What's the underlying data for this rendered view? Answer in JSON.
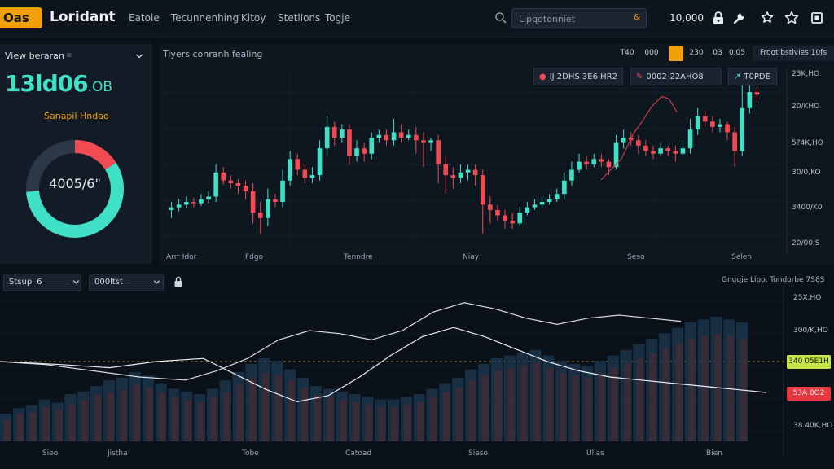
{
  "header": {
    "logo": "Oas",
    "brand": "Loridant",
    "nav": [
      "Eatole",
      "Tecunnenhing",
      "Kitoy",
      "Stetlions",
      "Togje"
    ],
    "search_placeholder": "Lipqotonniet",
    "search_tag": "&",
    "balance": "10,000",
    "icons": [
      "lock-icon",
      "tool-icon",
      "badge-icon",
      "star-icon",
      "exit-icon"
    ]
  },
  "left_panel": {
    "view_label": "View beraran",
    "view_icon": "⧈",
    "value": "13ld06",
    "value_unit": ".OB",
    "sub_label": "Sanapil Hndao",
    "donut_label": "4005/6\"",
    "donut_fraction": 0.74,
    "colors": {
      "teal": "#3fe0c6",
      "red": "#f04a52",
      "track": "#2a3848"
    }
  },
  "main_chart": {
    "title": "Tiyers conranh fealing",
    "timeframes": [
      "T40",
      "000",
      "",
      "230",
      "03",
      "0.05"
    ],
    "active_timeframe_index": 2,
    "right_label": "Froot bstlvies 10fs",
    "pills": [
      {
        "icon": "dot-icon",
        "label": "IJ 2DHS 3E6 HR2"
      },
      {
        "icon": "pencil-icon",
        "label": "0002-22AHO8"
      },
      {
        "icon": "trend-icon",
        "label": "T0PDE"
      }
    ],
    "price_labels": [
      "23K,HO",
      "20/KHO",
      "5?4K,HO",
      "30/0,KO",
      "3400/K0",
      "20/00,S"
    ],
    "x_labels": [
      "Arrr Idor",
      "Fdgo",
      "Tenndre",
      "Niay",
      "Seso",
      "Selen"
    ]
  },
  "chart_data": {
    "type": "candlestick",
    "title": "Tiyers conranh fealing",
    "x_labels": [
      "Arrr Idor",
      "Fdgo",
      "Tenndre",
      "Niay",
      "Seso",
      "Selen"
    ],
    "y_tick_labels": [
      "23K,HO",
      "20/KHO",
      "5?4K,HO",
      "30/0,KO",
      "3400/K0",
      "20/00,S"
    ],
    "ohlc": [
      [
        98,
        100,
        92,
        104
      ],
      [
        100,
        102,
        97,
        106
      ],
      [
        102,
        104,
        99,
        108
      ],
      [
        104,
        103,
        100,
        107
      ],
      [
        103,
        106,
        101,
        110
      ],
      [
        106,
        108,
        103,
        112
      ],
      [
        108,
        126,
        104,
        132
      ],
      [
        126,
        120,
        117,
        130
      ],
      [
        120,
        118,
        114,
        124
      ],
      [
        118,
        116,
        110,
        121
      ],
      [
        116,
        112,
        106,
        120
      ],
      [
        112,
        96,
        88,
        118
      ],
      [
        96,
        92,
        80,
        104
      ],
      [
        92,
        106,
        86,
        114
      ],
      [
        106,
        104,
        100,
        110
      ],
      [
        104,
        120,
        100,
        128
      ],
      [
        120,
        136,
        116,
        142
      ],
      [
        136,
        128,
        124,
        140
      ],
      [
        128,
        122,
        118,
        132
      ],
      [
        122,
        124,
        118,
        130
      ],
      [
        124,
        144,
        120,
        150
      ],
      [
        144,
        160,
        138,
        168
      ],
      [
        160,
        152,
        146,
        164
      ],
      [
        152,
        158,
        148,
        162
      ],
      [
        158,
        138,
        132,
        162
      ],
      [
        138,
        144,
        134,
        150
      ],
      [
        144,
        140,
        134,
        148
      ],
      [
        140,
        152,
        136,
        156
      ],
      [
        152,
        154,
        148,
        158
      ],
      [
        154,
        150,
        146,
        158
      ],
      [
        150,
        156,
        146,
        166
      ],
      [
        156,
        152,
        148,
        162
      ],
      [
        152,
        154,
        150,
        158
      ],
      [
        154,
        150,
        140,
        160
      ],
      [
        150,
        148,
        130,
        156
      ],
      [
        148,
        150,
        142,
        152
      ],
      [
        150,
        132,
        118,
        154
      ],
      [
        132,
        124,
        110,
        138
      ],
      [
        124,
        122,
        114,
        130
      ],
      [
        122,
        126,
        118,
        132
      ],
      [
        126,
        128,
        120,
        132
      ],
      [
        128,
        124,
        116,
        132
      ],
      [
        124,
        102,
        80,
        128
      ],
      [
        102,
        98,
        88,
        108
      ],
      [
        98,
        94,
        90,
        102
      ],
      [
        94,
        90,
        84,
        98
      ],
      [
        90,
        88,
        84,
        96
      ],
      [
        88,
        96,
        86,
        100
      ],
      [
        96,
        100,
        94,
        104
      ],
      [
        100,
        102,
        98,
        106
      ],
      [
        102,
        104,
        100,
        108
      ],
      [
        104,
        106,
        102,
        110
      ],
      [
        106,
        110,
        104,
        114
      ],
      [
        110,
        120,
        106,
        126
      ],
      [
        120,
        128,
        116,
        134
      ],
      [
        128,
        134,
        126,
        140
      ],
      [
        134,
        132,
        128,
        138
      ],
      [
        132,
        136,
        130,
        140
      ],
      [
        136,
        134,
        130,
        140
      ],
      [
        134,
        130,
        124,
        136
      ],
      [
        130,
        148,
        128,
        154
      ],
      [
        148,
        152,
        144,
        158
      ],
      [
        152,
        150,
        146,
        156
      ],
      [
        150,
        146,
        140,
        154
      ],
      [
        146,
        142,
        138,
        150
      ],
      [
        142,
        140,
        136,
        146
      ],
      [
        140,
        144,
        138,
        148
      ],
      [
        144,
        142,
        138,
        146
      ],
      [
        142,
        140,
        134,
        146
      ],
      [
        140,
        144,
        138,
        150
      ],
      [
        144,
        158,
        140,
        166
      ],
      [
        158,
        168,
        154,
        174
      ],
      [
        168,
        164,
        160,
        172
      ],
      [
        164,
        160,
        156,
        168
      ],
      [
        160,
        162,
        156,
        166
      ],
      [
        162,
        156,
        150,
        164
      ],
      [
        156,
        142,
        130,
        160
      ],
      [
        142,
        174,
        138,
        192
      ],
      [
        174,
        186,
        170,
        196
      ],
      [
        186,
        184,
        178,
        190
      ]
    ],
    "overlay_line": [
      [
        20,
        26
      ],
      [
        24,
        30
      ],
      [
        28,
        34
      ],
      [
        30,
        38
      ],
      [
        33,
        44
      ],
      [
        36,
        48
      ],
      [
        40,
        54
      ],
      [
        44,
        58
      ],
      [
        47,
        57
      ],
      [
        50,
        52
      ]
    ],
    "colors": {
      "up": "#3fe0c6",
      "down": "#f04a52",
      "overlay": "#c24045"
    }
  },
  "lower_panel": {
    "dropdowns": [
      "Stsupi 6",
      "000ltst"
    ],
    "legend": "Gnugje Lipo. Tondorbe 7S8S",
    "price_labels": [
      "25X,HO",
      "300/K,HO",
      "38.40K,HO"
    ],
    "tag_green": "340 05E1H",
    "tag_red": "53A 8O2",
    "x_labels": [
      "Sieo",
      "Jistha",
      "Tobe",
      "Catoad",
      "Sieso",
      "Ulias",
      "Bien"
    ],
    "chart_data": {
      "type": "area",
      "volume_up": [
        20,
        24,
        26,
        30,
        28,
        34,
        36,
        40,
        44,
        46,
        50,
        48,
        42,
        38,
        36,
        34,
        38,
        44,
        50,
        56,
        60,
        58,
        52,
        46,
        40,
        38,
        36,
        34,
        32,
        30,
        30,
        32,
        34,
        38,
        42,
        46,
        52,
        56,
        60,
        62,
        64,
        66,
        62,
        58,
        56,
        54,
        58,
        62,
        66,
        70,
        74,
        78,
        82,
        86,
        88,
        90,
        88,
        86
      ],
      "volume_down": [
        18,
        22,
        24,
        28,
        26,
        30,
        34,
        38,
        40,
        42,
        46,
        44,
        40,
        36,
        34,
        32,
        36,
        40,
        46,
        52,
        56,
        54,
        50,
        44,
        38,
        36,
        34,
        32,
        30,
        28,
        28,
        30,
        32,
        36,
        40,
        44,
        50,
        54,
        58,
        60,
        62,
        64,
        60,
        56,
        54,
        52,
        56,
        60,
        64,
        68,
        72,
        76,
        80,
        84,
        86,
        88,
        86,
        84
      ],
      "line_a": [
        [
          0,
          60
        ],
        [
          6,
          62
        ],
        [
          12,
          66
        ],
        [
          18,
          70
        ],
        [
          24,
          72
        ],
        [
          28,
          66
        ],
        [
          32,
          58
        ],
        [
          36,
          46
        ],
        [
          40,
          40
        ],
        [
          44,
          42
        ],
        [
          48,
          46
        ],
        [
          52,
          40
        ],
        [
          56,
          28
        ],
        [
          60,
          22
        ],
        [
          64,
          26
        ],
        [
          68,
          32
        ],
        [
          72,
          36
        ],
        [
          76,
          32
        ],
        [
          80,
          30
        ],
        [
          84,
          32
        ],
        [
          88,
          34
        ]
      ],
      "line_b": [
        [
          0,
          60
        ],
        [
          8,
          62
        ],
        [
          14,
          64
        ],
        [
          20,
          60
        ],
        [
          26,
          58
        ],
        [
          30,
          68
        ],
        [
          34,
          78
        ],
        [
          38,
          86
        ],
        [
          42,
          82
        ],
        [
          46,
          70
        ],
        [
          50,
          56
        ],
        [
          54,
          44
        ],
        [
          58,
          38
        ],
        [
          62,
          44
        ],
        [
          66,
          52
        ],
        [
          70,
          60
        ],
        [
          74,
          66
        ],
        [
          78,
          70
        ],
        [
          82,
          72
        ],
        [
          86,
          74
        ],
        [
          90,
          76
        ],
        [
          94,
          78
        ],
        [
          98,
          80
        ]
      ]
    }
  }
}
